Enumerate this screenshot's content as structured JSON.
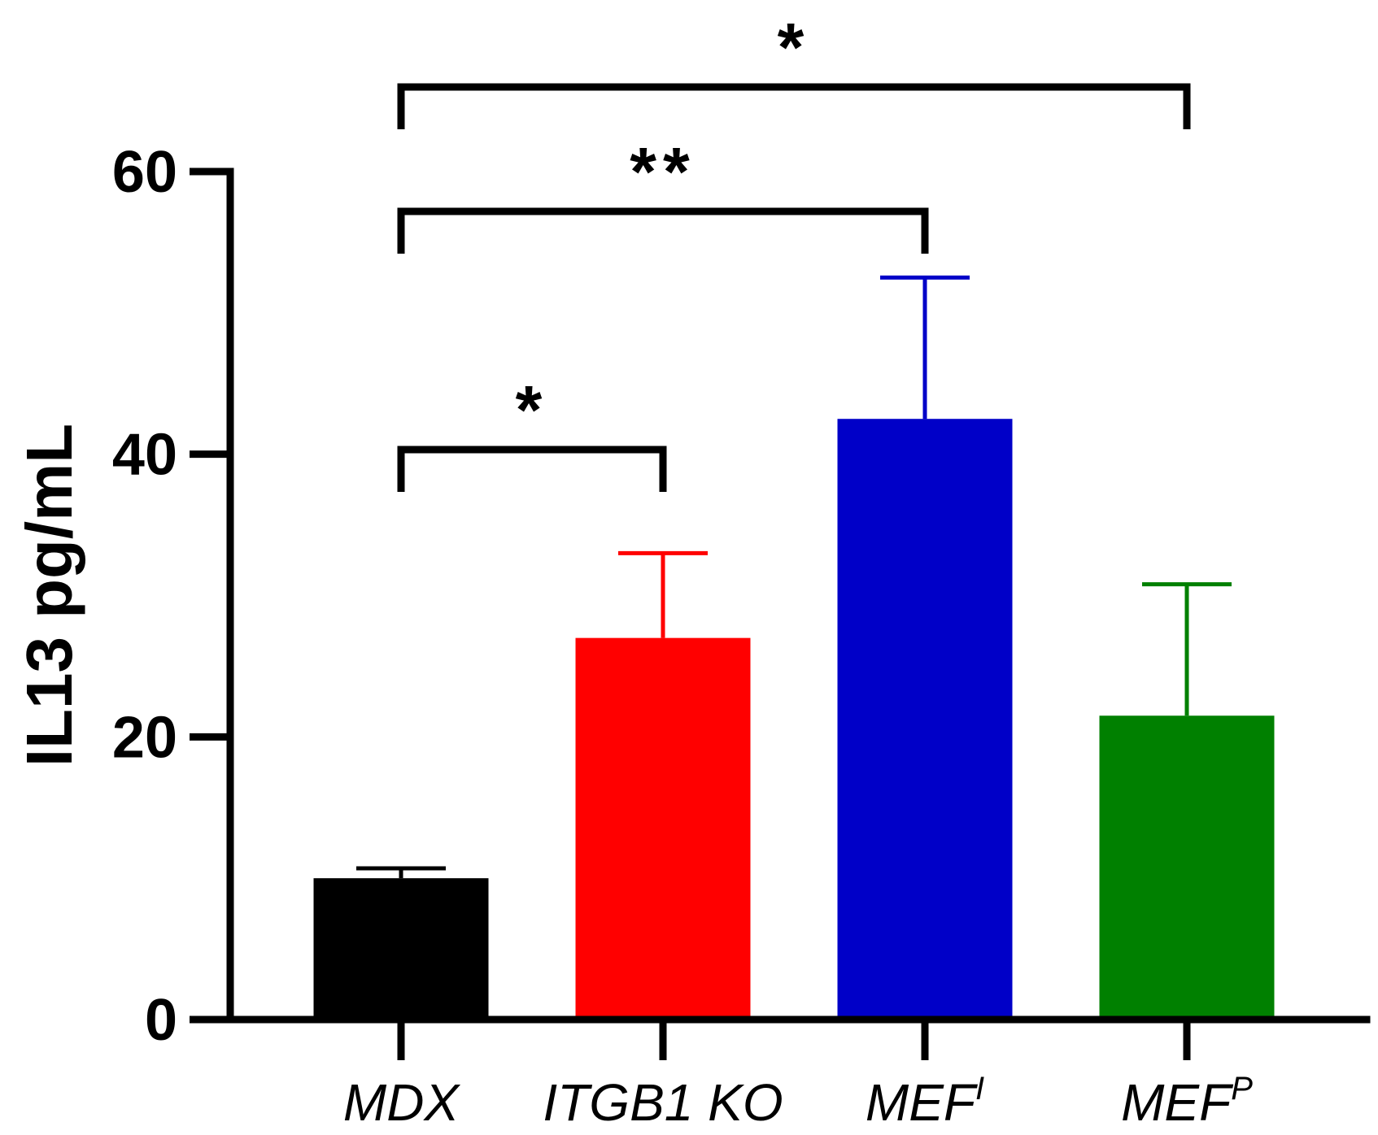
{
  "chart_data": {
    "type": "bar",
    "title": "",
    "xlabel": "",
    "ylabel": "IL13 pg/mL",
    "ylim": [
      0,
      60
    ],
    "yticks": [
      0,
      20,
      40,
      60
    ],
    "yticks_text": [
      "0",
      "20",
      "40",
      "60"
    ],
    "grid": false,
    "legend": "none",
    "categories": [
      {
        "name": "MDX",
        "base": "MDX",
        "sup": ""
      },
      {
        "name": "ITGB1 KO",
        "base": "ITGB1 KO",
        "sup": ""
      },
      {
        "name": "MEF^I",
        "base": "MEF",
        "sup": "I"
      },
      {
        "name": "MEF^P",
        "base": "MEF",
        "sup": "P"
      }
    ],
    "values": [
      10,
      27,
      42.5,
      21.5
    ],
    "errors": [
      0.7,
      6,
      10,
      9.3
    ],
    "colors": [
      "#000000",
      "#ff0000",
      "#0000c8",
      "#008000"
    ],
    "significance": [
      {
        "from": 0,
        "to": 1,
        "label": "*"
      },
      {
        "from": 0,
        "to": 2,
        "label": "**"
      },
      {
        "from": 0,
        "to": 3,
        "label": "*"
      }
    ]
  }
}
